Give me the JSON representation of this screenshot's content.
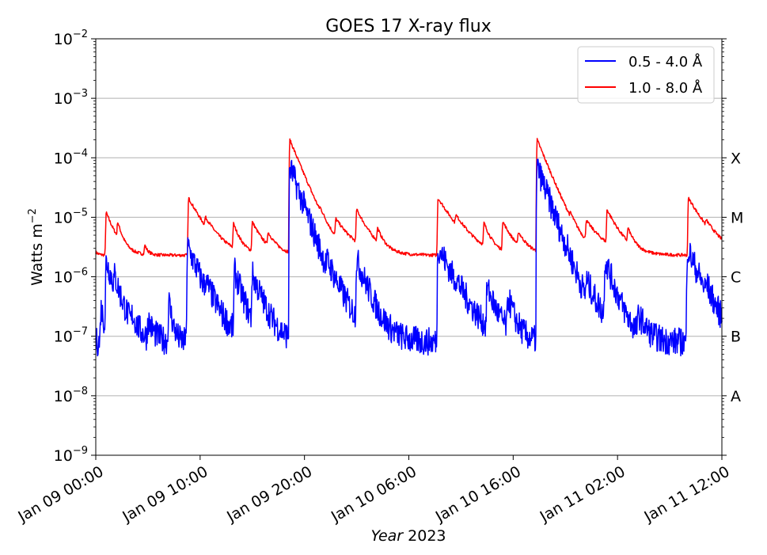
{
  "chart_data": {
    "type": "line",
    "title": "GOES 17 X-ray flux",
    "xlabel_italic": "Year",
    "xlabel_rest": " 2023",
    "ylabel": "Watts m",
    "ylabel_sup": "−2",
    "yscale": "log",
    "ylim_exp": [
      -9,
      -2
    ],
    "xlim_hours": [
      0,
      60
    ],
    "x_ticks": [
      {
        "h": 0,
        "label": "Jan 09 00:00"
      },
      {
        "h": 10,
        "label": "Jan 09 10:00"
      },
      {
        "h": 20,
        "label": "Jan 09 20:00"
      },
      {
        "h": 30,
        "label": "Jan 10 06:00"
      },
      {
        "h": 40,
        "label": "Jan 10 16:00"
      },
      {
        "h": 50,
        "label": "Jan 11 02:00"
      },
      {
        "h": 60,
        "label": "Jan 11 12:00"
      }
    ],
    "y_ticks": [
      {
        "exp": -9,
        "base": "10",
        "sup": "−9"
      },
      {
        "exp": -8,
        "base": "10",
        "sup": "−8"
      },
      {
        "exp": -7,
        "base": "10",
        "sup": "−7"
      },
      {
        "exp": -6,
        "base": "10",
        "sup": "−6"
      },
      {
        "exp": -5,
        "base": "10",
        "sup": "−5"
      },
      {
        "exp": -4,
        "base": "10",
        "sup": "−4"
      },
      {
        "exp": -3,
        "base": "10",
        "sup": "−3"
      },
      {
        "exp": -2,
        "base": "10",
        "sup": "−2"
      }
    ],
    "flare_classes": [
      {
        "exp": -4,
        "label": "X"
      },
      {
        "exp": -5,
        "label": "M"
      },
      {
        "exp": -6,
        "label": "C"
      },
      {
        "exp": -7,
        "label": "B"
      },
      {
        "exp": -8,
        "label": "A"
      }
    ],
    "grid": "horizontal",
    "legend_position": "top-right",
    "series": [
      {
        "name": "0.5 - 4.0 Å",
        "color": "#0000ff",
        "baseline": 8e-08,
        "noise": 0.55,
        "peaks": [
          [
            0.5,
            3e-07,
            0.4
          ],
          [
            1.0,
            1.8e-06,
            0.8
          ],
          [
            1.8,
            4e-07,
            0.5
          ],
          [
            3.5,
            1.5e-07,
            0.5
          ],
          [
            5.0,
            1.8e-07,
            0.5
          ],
          [
            7.0,
            4e-07,
            0.3
          ],
          [
            8.8,
            3.2e-06,
            1.0
          ],
          [
            10.5,
            3e-07,
            1.0
          ],
          [
            13.3,
            1.2e-06,
            0.7
          ],
          [
            15.0,
            1e-06,
            0.9
          ],
          [
            18.6,
            7e-05,
            0.9
          ],
          [
            20.0,
            2.5e-07,
            0.5
          ],
          [
            22.2,
            6e-07,
            1.5
          ],
          [
            25.0,
            1.8e-06,
            0.9
          ],
          [
            32.8,
            3.2e-06,
            1.2
          ],
          [
            34.5,
            2e-07,
            1.0
          ],
          [
            37.5,
            6e-07,
            0.8
          ],
          [
            39.5,
            4e-07,
            0.6
          ],
          [
            42.3,
            7e-05,
            0.9
          ],
          [
            45.0,
            3e-07,
            0.6
          ],
          [
            47.0,
            5e-07,
            1.2
          ],
          [
            48.8,
            1.8e-06,
            0.8
          ],
          [
            52.0,
            2e-07,
            0.7
          ],
          [
            56.7,
            3e-06,
            1.0
          ],
          [
            58.5,
            3e-07,
            0.7
          ]
        ]
      },
      {
        "name": "1.0 - 8.0 Å",
        "color": "#ff0000",
        "baseline": 2.3e-06,
        "noise": 0.06,
        "peaks": [
          [
            0.0,
            2.6e-06,
            0.3
          ],
          [
            1.0,
            1.2e-05,
            0.8
          ],
          [
            2.1,
            6e-06,
            0.4
          ],
          [
            4.7,
            3.3e-06,
            0.3
          ],
          [
            8.9,
            2.1e-05,
            1.2
          ],
          [
            10.5,
            5.2e-06,
            1.2
          ],
          [
            13.2,
            7e-06,
            0.6
          ],
          [
            15.0,
            8e-06,
            0.9
          ],
          [
            16.5,
            4.5e-06,
            0.8
          ],
          [
            18.6,
            0.0002,
            1.0
          ],
          [
            21.5,
            4e-06,
            0.5
          ],
          [
            23.0,
            7e-06,
            1.5
          ],
          [
            25.0,
            1.2e-05,
            1.0
          ],
          [
            27.0,
            5e-06,
            0.5
          ],
          [
            32.8,
            2.1e-05,
            1.4
          ],
          [
            34.5,
            5.5e-06,
            1.2
          ],
          [
            37.2,
            7e-06,
            0.6
          ],
          [
            39.0,
            8e-06,
            0.9
          ],
          [
            40.5,
            4.5e-06,
            0.8
          ],
          [
            42.3,
            0.0002,
            1.0
          ],
          [
            45.5,
            4e-06,
            0.5
          ],
          [
            47.0,
            7e-06,
            1.5
          ],
          [
            49.0,
            1.2e-05,
            1.0
          ],
          [
            51.0,
            5e-06,
            0.5
          ],
          [
            56.8,
            2.1e-05,
            1.3
          ],
          [
            58.5,
            4e-06,
            1.0
          ]
        ]
      }
    ]
  }
}
